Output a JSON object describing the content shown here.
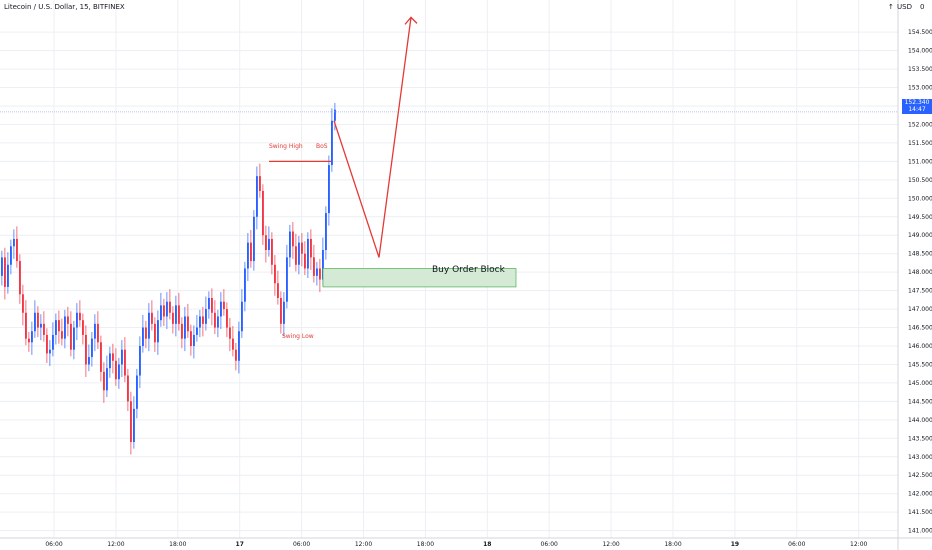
{
  "header": {
    "title": "Litecoin / U.S. Dollar, 15, BITFINEX",
    "currency": "USD",
    "arrow": "↑",
    "gear": "0"
  },
  "last_price": {
    "value": "152.340",
    "countdown": "14:47"
  },
  "annotations": {
    "swing_high": "Swing High",
    "bos": "BoS",
    "swing_low": "Swing Low",
    "buy_order_block": "Buy Order Block"
  },
  "colors": {
    "up": "#2962ff",
    "down": "#f23645",
    "annotation": "#e53935",
    "zone_fill": "#d4ead5",
    "zone_border": "#4caf50",
    "grid": "#eceff3",
    "axis_text": "#131722"
  },
  "chart_data": {
    "type": "candlestick",
    "title": "Litecoin / U.S. Dollar, 15, BITFINEX",
    "y_ticks": [
      141.0,
      141.5,
      142.0,
      142.5,
      143.0,
      143.5,
      144.0,
      144.5,
      145.0,
      145.5,
      146.0,
      146.5,
      147.0,
      147.5,
      148.0,
      148.5,
      149.0,
      149.5,
      150.0,
      150.5,
      151.0,
      151.5,
      152.0,
      152.5,
      153.0,
      153.5,
      154.0,
      154.5
    ],
    "y_range": [
      140.8,
      155.1
    ],
    "x_ticks": [
      "06:00",
      "12:00",
      "18:00",
      "17",
      "06:00",
      "12:00",
      "18:00",
      "18",
      "06:00",
      "12:00",
      "18:00",
      "19",
      "06:00",
      "12:00"
    ],
    "grid": true,
    "last_price": 152.34,
    "candles_close": [
      148.4,
      147.6,
      148.2,
      148.7,
      148.9,
      148.3,
      147.4,
      146.9,
      146.2,
      146.1,
      146.4,
      146.9,
      146.5,
      146.6,
      146.3,
      145.8,
      145.9,
      146.3,
      146.7,
      146.4,
      146.2,
      146.8,
      146.6,
      145.9,
      146.5,
      146.9,
      146.7,
      146.3,
      145.5,
      145.7,
      146.2,
      146.6,
      146.1,
      145.3,
      144.8,
      145.4,
      145.8,
      145.6,
      145.1,
      145.5,
      145.9,
      145.2,
      144.5,
      143.4,
      144.3,
      145.2,
      146.0,
      146.5,
      146.2,
      146.9,
      146.6,
      146.1,
      146.7,
      147.1,
      146.8,
      147.2,
      146.9,
      146.6,
      147.1,
      146.6,
      146.2,
      146.8,
      146.4,
      146.0,
      146.3,
      146.5,
      146.8,
      146.6,
      147.0,
      147.3,
      146.9,
      146.5,
      146.8,
      147.2,
      147.0,
      146.5,
      146.2,
      145.9,
      145.6,
      146.4,
      147.2,
      148.1,
      148.8,
      148.3,
      149.5,
      150.6,
      150.2,
      149.0,
      148.6,
      148.9,
      148.2,
      147.7,
      147.3,
      146.6,
      147.2,
      148.4,
      149.1,
      148.7,
      148.2,
      148.8,
      148.5,
      148.1,
      148.9,
      148.4,
      147.9,
      148.1,
      147.8,
      148.6,
      149.6,
      150.9,
      152.1,
      152.4
    ]
  },
  "zone": {
    "top": 148.1,
    "bottom": 147.6
  },
  "swing_high_level": 151.0,
  "swing_low_level": 146.45,
  "projection": [
    [
      152.1,
      148.4
    ],
    [
      147.8,
      154.9
    ]
  ]
}
